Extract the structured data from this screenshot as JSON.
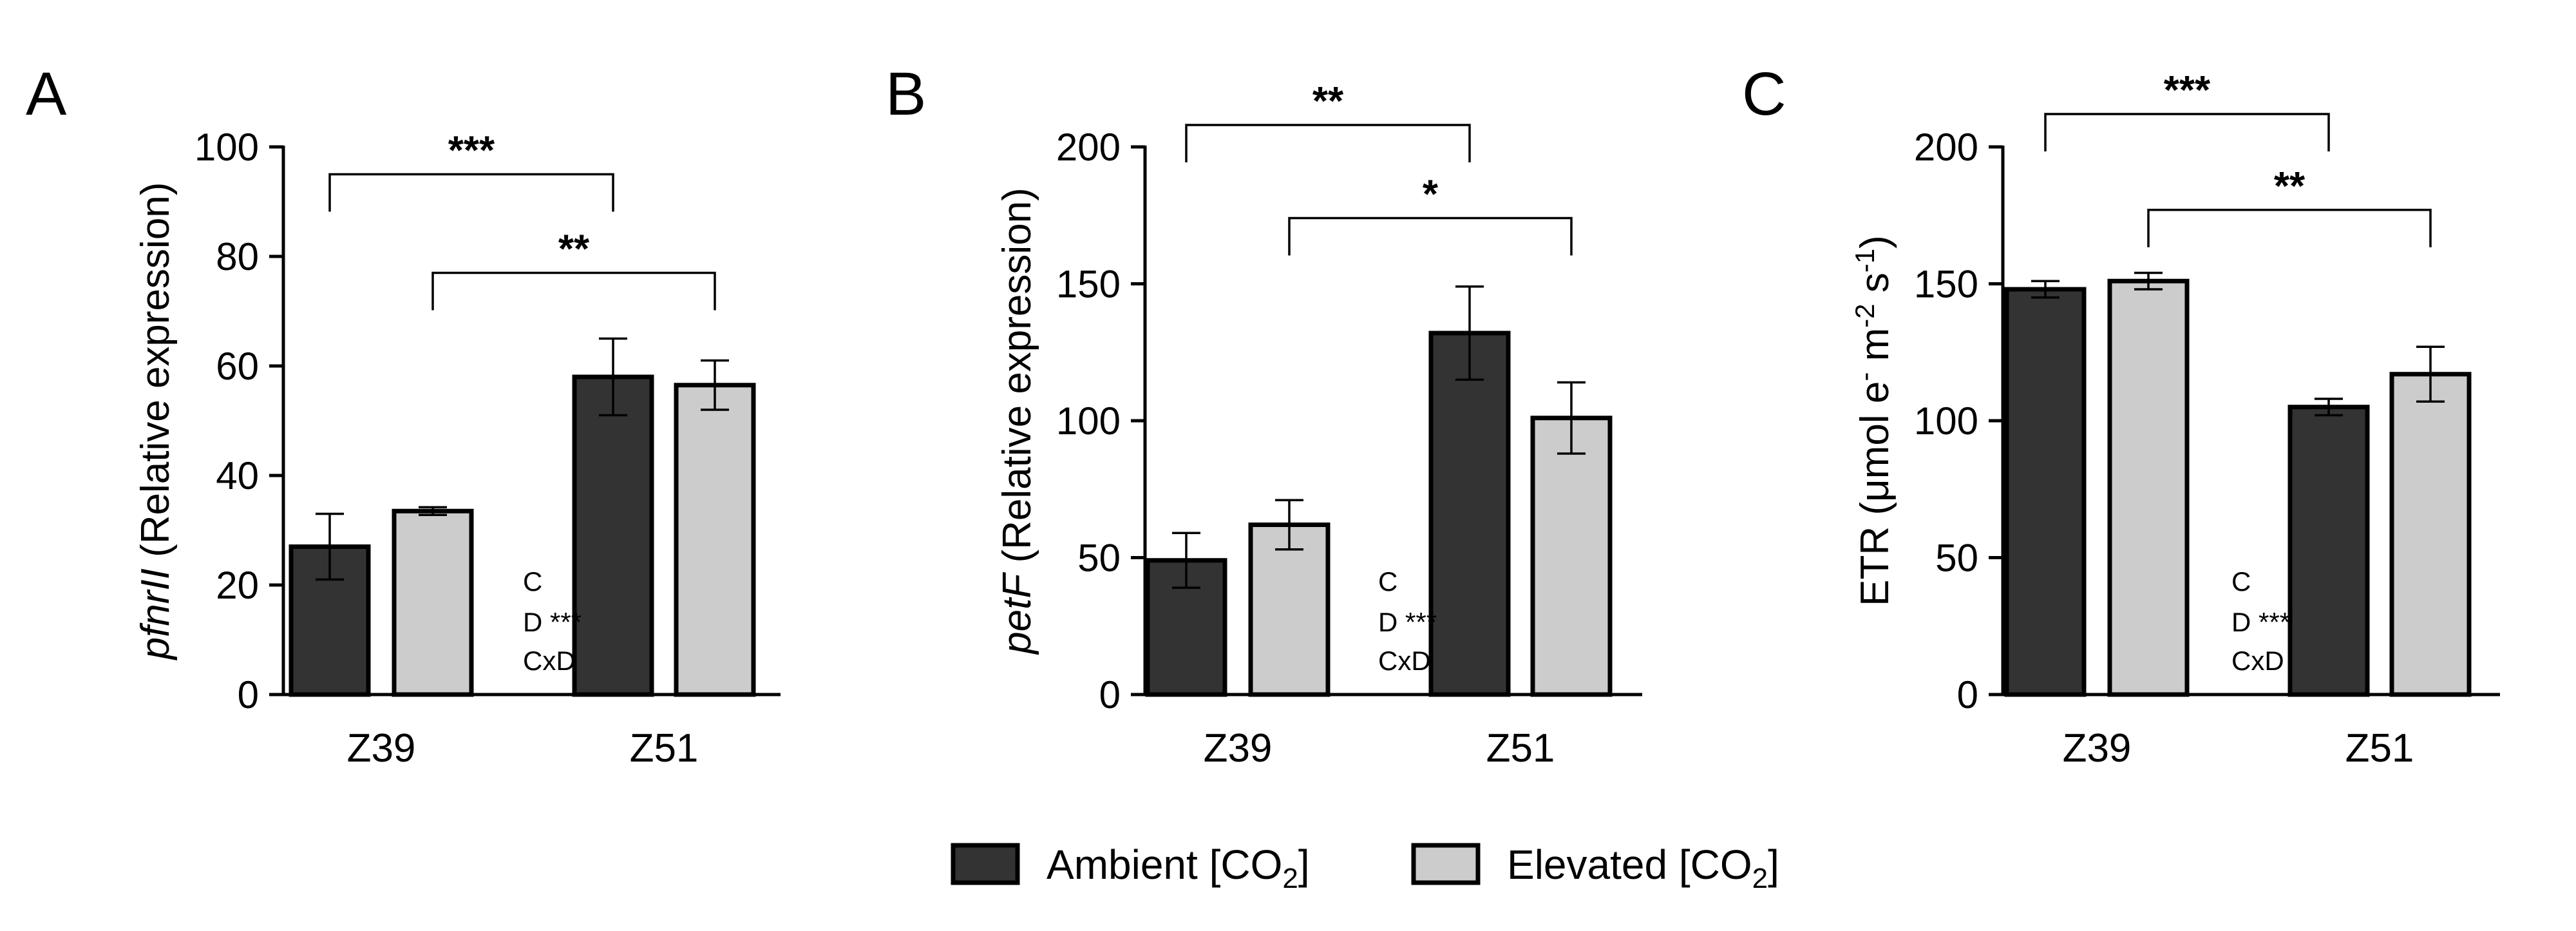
{
  "legend": {
    "ambient": {
      "text": "Ambient [CO",
      "sub": "2",
      "close": "]",
      "color": "#333333"
    },
    "elevated": {
      "text": "Elevated [CO",
      "sub": "2",
      "close": "]",
      "color": "#cccccc"
    }
  },
  "chart_data": [
    {
      "type": "bar",
      "panel": "A",
      "categories": [
        "Z39",
        "Z51"
      ],
      "series": [
        {
          "name": "Ambient [CO2]",
          "color": "#333333",
          "values": [
            27,
            58
          ],
          "errors": [
            6,
            7
          ]
        },
        {
          "name": "Elevated [CO2]",
          "color": "#cccccc",
          "values": [
            33.5,
            56.5
          ],
          "errors": [
            0.7,
            4.5
          ]
        }
      ],
      "ylabel": {
        "italic": "pfnrII",
        "rest": " (Relative expression)"
      },
      "ylim": [
        0,
        100
      ],
      "yticks": [
        "0",
        "20",
        "40",
        "60",
        "80",
        "100"
      ],
      "ytick_values": [
        0,
        20,
        40,
        60,
        80,
        100
      ],
      "significance": [
        {
          "from": "Z39-Ambient",
          "to": "Z51-Ambient",
          "label": "***",
          "y": 95
        },
        {
          "from": "Z39-Elevated",
          "to": "Z51-Elevated",
          "label": "**",
          "y": 77
        }
      ],
      "anova": [
        "C",
        "D ***",
        "CxD"
      ]
    },
    {
      "type": "bar",
      "panel": "B",
      "categories": [
        "Z39",
        "Z51"
      ],
      "series": [
        {
          "name": "Ambient [CO2]",
          "color": "#333333",
          "values": [
            49,
            132
          ],
          "errors": [
            10,
            17
          ]
        },
        {
          "name": "Elevated [CO2]",
          "color": "#cccccc",
          "values": [
            62,
            101
          ],
          "errors": [
            9,
            13
          ]
        }
      ],
      "ylabel": {
        "italic": "petF",
        "rest": " (Relative expression)"
      },
      "ylim": [
        0,
        200
      ],
      "yticks": [
        "0",
        "50",
        "100",
        "150",
        "200"
      ],
      "ytick_values": [
        0,
        50,
        100,
        150,
        200
      ],
      "significance": [
        {
          "from": "Z39-Ambient",
          "to": "Z51-Ambient",
          "label": "**",
          "y": 208
        },
        {
          "from": "Z39-Elevated",
          "to": "Z51-Elevated",
          "label": "*",
          "y": 174
        }
      ],
      "anova": [
        "C",
        "D ***",
        "CxD"
      ]
    },
    {
      "type": "bar",
      "panel": "C",
      "categories": [
        "Z39",
        "Z51"
      ],
      "series": [
        {
          "name": "Ambient [CO2]",
          "color": "#333333",
          "values": [
            148,
            105
          ],
          "errors": [
            3,
            3
          ]
        },
        {
          "name": "Elevated [CO2]",
          "color": "#cccccc",
          "values": [
            151,
            117
          ],
          "errors": [
            3,
            10
          ]
        }
      ],
      "ylabel": {
        "text": "ETR (μmol e",
        "sup1": "-",
        "mid1": " m",
        "sup2": "-2",
        "mid2": " s",
        "sup3": "-1",
        "close": ")"
      },
      "ylim": [
        0,
        200
      ],
      "yticks": [
        "0",
        "50",
        "100",
        "150",
        "200"
      ],
      "ytick_values": [
        0,
        50,
        100,
        150,
        200
      ],
      "significance": [
        {
          "from": "Z39-Ambient",
          "to": "Z51-Ambient",
          "label": "***",
          "y": 212
        },
        {
          "from": "Z39-Elevated",
          "to": "Z51-Elevated",
          "label": "**",
          "y": 177
        }
      ],
      "anova": [
        "C",
        "D ***",
        "CxD"
      ]
    }
  ]
}
